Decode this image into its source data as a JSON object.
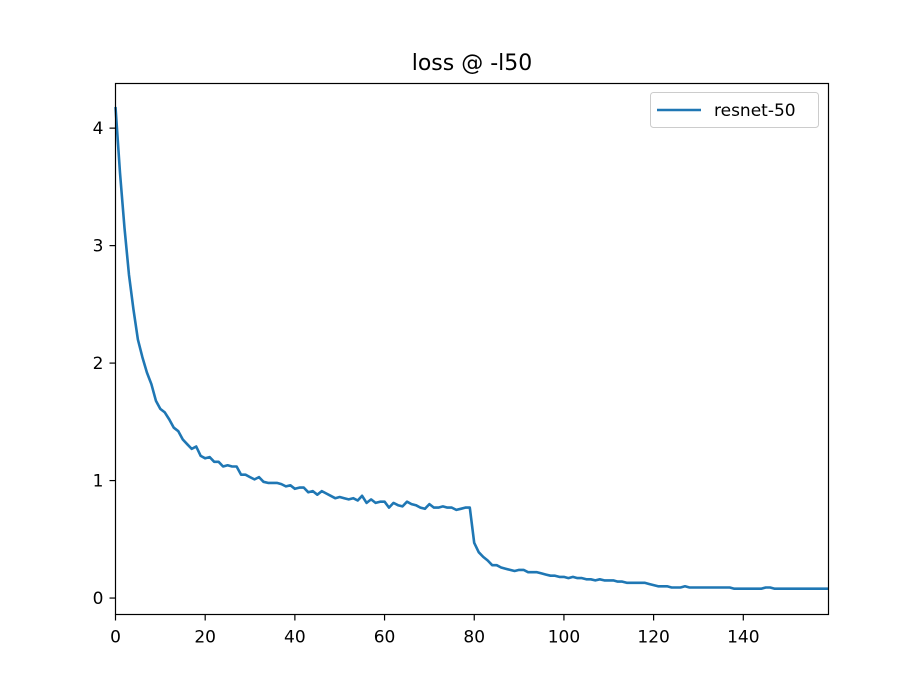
{
  "chart_data": {
    "type": "line",
    "title": "loss @ -l50",
    "xlabel": "",
    "ylabel": "",
    "xlim": [
      0,
      159
    ],
    "ylim": [
      -0.14,
      4.38
    ],
    "xticks": [
      0,
      20,
      40,
      60,
      80,
      100,
      120,
      140
    ],
    "yticks": [
      0,
      1,
      2,
      3,
      4
    ],
    "grid": false,
    "legend": {
      "position": "top-right",
      "entries": [
        "resnet-50"
      ]
    },
    "series": [
      {
        "name": "resnet-50",
        "color": "#1f77b4",
        "x": [
          0,
          1,
          2,
          3,
          4,
          5,
          6,
          7,
          8,
          9,
          10,
          11,
          12,
          13,
          14,
          15,
          16,
          17,
          18,
          19,
          20,
          21,
          22,
          23,
          24,
          25,
          26,
          27,
          28,
          29,
          30,
          31,
          32,
          33,
          34,
          35,
          36,
          37,
          38,
          39,
          40,
          41,
          42,
          43,
          44,
          45,
          46,
          47,
          48,
          49,
          50,
          51,
          52,
          53,
          54,
          55,
          56,
          57,
          58,
          59,
          60,
          61,
          62,
          63,
          64,
          65,
          66,
          67,
          68,
          69,
          70,
          71,
          72,
          73,
          74,
          75,
          76,
          77,
          78,
          79,
          80,
          81,
          82,
          83,
          84,
          85,
          86,
          87,
          88,
          89,
          90,
          91,
          92,
          93,
          94,
          95,
          96,
          97,
          98,
          99,
          100,
          101,
          102,
          103,
          104,
          105,
          106,
          107,
          108,
          109,
          110,
          111,
          112,
          113,
          114,
          115,
          116,
          117,
          118,
          119,
          120,
          121,
          122,
          123,
          124,
          125,
          126,
          127,
          128,
          129,
          130,
          131,
          132,
          133,
          134,
          135,
          136,
          137,
          138,
          139,
          140,
          141,
          142,
          143,
          144,
          145,
          146,
          147,
          148,
          149,
          150,
          151,
          152,
          153,
          154,
          155,
          156,
          157,
          158,
          159
        ],
        "y": [
          4.18,
          3.62,
          3.15,
          2.75,
          2.46,
          2.2,
          2.05,
          1.92,
          1.82,
          1.68,
          1.61,
          1.58,
          1.52,
          1.45,
          1.42,
          1.35,
          1.31,
          1.27,
          1.29,
          1.21,
          1.19,
          1.2,
          1.16,
          1.16,
          1.12,
          1.13,
          1.12,
          1.12,
          1.05,
          1.05,
          1.03,
          1.01,
          1.03,
          0.99,
          0.98,
          0.98,
          0.98,
          0.97,
          0.95,
          0.96,
          0.93,
          0.94,
          0.94,
          0.9,
          0.91,
          0.88,
          0.91,
          0.89,
          0.87,
          0.85,
          0.86,
          0.85,
          0.84,
          0.85,
          0.83,
          0.87,
          0.81,
          0.84,
          0.81,
          0.82,
          0.82,
          0.77,
          0.81,
          0.79,
          0.78,
          0.82,
          0.8,
          0.79,
          0.77,
          0.76,
          0.8,
          0.77,
          0.77,
          0.78,
          0.77,
          0.77,
          0.75,
          0.76,
          0.77,
          0.77,
          0.47,
          0.39,
          0.35,
          0.32,
          0.28,
          0.28,
          0.26,
          0.25,
          0.24,
          0.23,
          0.24,
          0.24,
          0.22,
          0.22,
          0.22,
          0.21,
          0.2,
          0.19,
          0.19,
          0.18,
          0.18,
          0.17,
          0.18,
          0.17,
          0.17,
          0.16,
          0.16,
          0.15,
          0.16,
          0.15,
          0.15,
          0.15,
          0.14,
          0.14,
          0.13,
          0.13,
          0.13,
          0.13,
          0.13,
          0.12,
          0.11,
          0.1,
          0.1,
          0.1,
          0.09,
          0.09,
          0.09,
          0.1,
          0.09,
          0.09,
          0.09,
          0.09,
          0.09,
          0.09,
          0.09,
          0.09,
          0.09,
          0.09,
          0.08,
          0.08,
          0.08,
          0.08,
          0.08,
          0.08,
          0.08,
          0.09,
          0.09,
          0.08,
          0.08,
          0.08,
          0.08,
          0.08,
          0.08,
          0.08,
          0.08,
          0.08,
          0.08,
          0.08,
          0.08,
          0.08
        ]
      }
    ]
  }
}
